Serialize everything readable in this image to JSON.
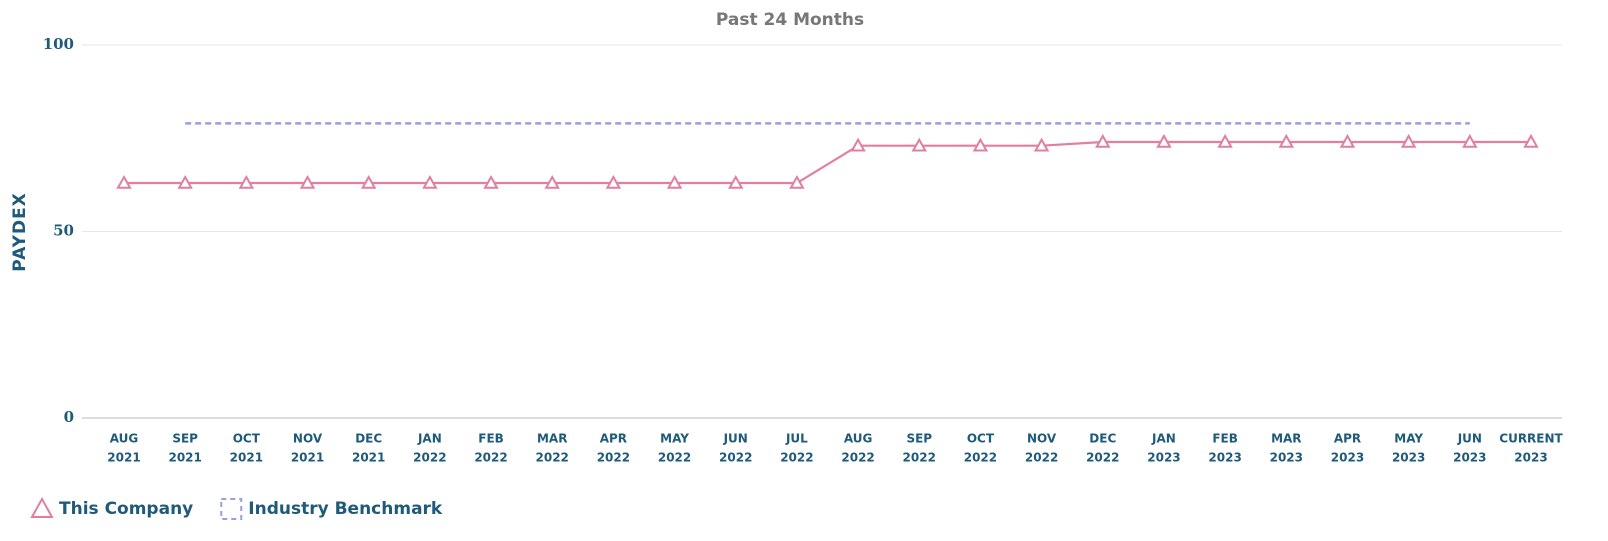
{
  "chart_data": {
    "type": "line",
    "title": "Past 24 Months",
    "ylabel": "PAYDEX",
    "categories": [
      [
        "AUG",
        "2021"
      ],
      [
        "SEP",
        "2021"
      ],
      [
        "OCT",
        "2021"
      ],
      [
        "NOV",
        "2021"
      ],
      [
        "DEC",
        "2021"
      ],
      [
        "JAN",
        "2022"
      ],
      [
        "FEB",
        "2022"
      ],
      [
        "MAR",
        "2022"
      ],
      [
        "APR",
        "2022"
      ],
      [
        "MAY",
        "2022"
      ],
      [
        "JUN",
        "2022"
      ],
      [
        "JUL",
        "2022"
      ],
      [
        "AUG",
        "2022"
      ],
      [
        "SEP",
        "2022"
      ],
      [
        "OCT",
        "2022"
      ],
      [
        "NOV",
        "2022"
      ],
      [
        "DEC",
        "2022"
      ],
      [
        "JAN",
        "2023"
      ],
      [
        "FEB",
        "2023"
      ],
      [
        "MAR",
        "2023"
      ],
      [
        "APR",
        "2023"
      ],
      [
        "MAY",
        "2023"
      ],
      [
        "JUN",
        "2023"
      ],
      [
        "CURRENT",
        "2023"
      ]
    ],
    "series": [
      {
        "name": "This Company",
        "color": "#e07fa0",
        "marker": "triangle",
        "dash": false,
        "values": [
          63,
          63,
          63,
          63,
          63,
          63,
          63,
          63,
          63,
          63,
          63,
          63,
          73,
          73,
          73,
          73,
          74,
          74,
          74,
          74,
          74,
          74,
          74,
          74
        ]
      },
      {
        "name": "Industry Benchmark",
        "color": "#9a9fdc",
        "marker": "none",
        "dash": true,
        "values": [
          null,
          79,
          79,
          79,
          79,
          79,
          79,
          79,
          79,
          79,
          79,
          79,
          79,
          79,
          79,
          79,
          79,
          79,
          79,
          79,
          79,
          79,
          79,
          null
        ]
      }
    ],
    "ylim": [
      0,
      100
    ],
    "yticks": [
      0,
      50,
      100
    ],
    "grid": true,
    "legend": "bottom-left"
  }
}
